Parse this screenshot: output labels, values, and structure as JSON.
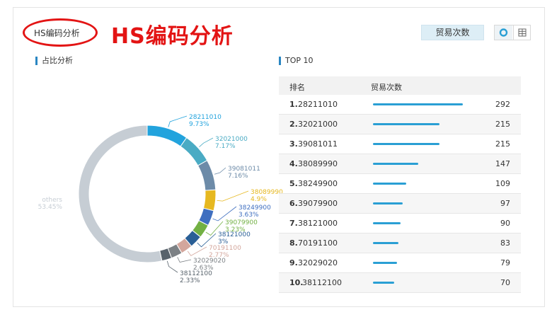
{
  "header": {
    "small_title": "HS编码分析",
    "big_title": "HS编码分析",
    "trade_button": "贸易次数",
    "view_pie_icon": "donut-chart-icon",
    "view_table_icon": "table-grid-icon"
  },
  "left_section": {
    "title": "占比分析"
  },
  "right_section": {
    "title": "TOP 10"
  },
  "colors": {
    "accent": "#2a86c2",
    "bar": "#2a9fd4",
    "highlight": "#e31414"
  },
  "chart_data": [
    {
      "type": "pie",
      "variant": "donut",
      "title": "占比分析",
      "slices": [
        {
          "label": "28211010",
          "percent_label": "9.73%",
          "value": 9.73,
          "color": "#22a3dd"
        },
        {
          "label": "32021000",
          "percent_label": "7.17%",
          "value": 7.17,
          "color": "#4aabc4"
        },
        {
          "label": "39081011",
          "percent_label": "7.16%",
          "value": 7.16,
          "color": "#6d8ba8"
        },
        {
          "label": "38089990",
          "percent_label": "4.9%",
          "value": 4.9,
          "color": "#e6b820"
        },
        {
          "label": "38249900",
          "percent_label": "3.63%",
          "value": 3.63,
          "color": "#3f6fc0"
        },
        {
          "label": "39079900",
          "percent_label": "3.23%",
          "value": 3.23,
          "color": "#72b043"
        },
        {
          "label": "38121000",
          "percent_label": "3%",
          "value": 3.0,
          "color": "#2a5f96"
        },
        {
          "label": "70191100",
          "percent_label": "2.77%",
          "value": 2.77,
          "color": "#d3a69c"
        },
        {
          "label": "32029020",
          "percent_label": "2.63%",
          "value": 2.63,
          "color": "#7c8185"
        },
        {
          "label": "38112100",
          "percent_label": "2.33%",
          "value": 2.33,
          "color": "#58636c"
        },
        {
          "label": "others",
          "percent_label": "53.45%",
          "value": 53.45,
          "color": "#c6cdd4"
        }
      ]
    },
    {
      "type": "bar",
      "title": "TOP 10",
      "columns": [
        "排名",
        "贸易次数"
      ],
      "ranks": [
        "1.",
        "2.",
        "3.",
        "4.",
        "5.",
        "6.",
        "7.",
        "8.",
        "9.",
        "10."
      ],
      "categories": [
        "28211010",
        "32021000",
        "39081011",
        "38089990",
        "38249900",
        "39079900",
        "38121000",
        "70191100",
        "32029020",
        "38112100"
      ],
      "values": [
        292,
        215,
        215,
        147,
        109,
        97,
        90,
        83,
        79,
        70
      ]
    }
  ]
}
